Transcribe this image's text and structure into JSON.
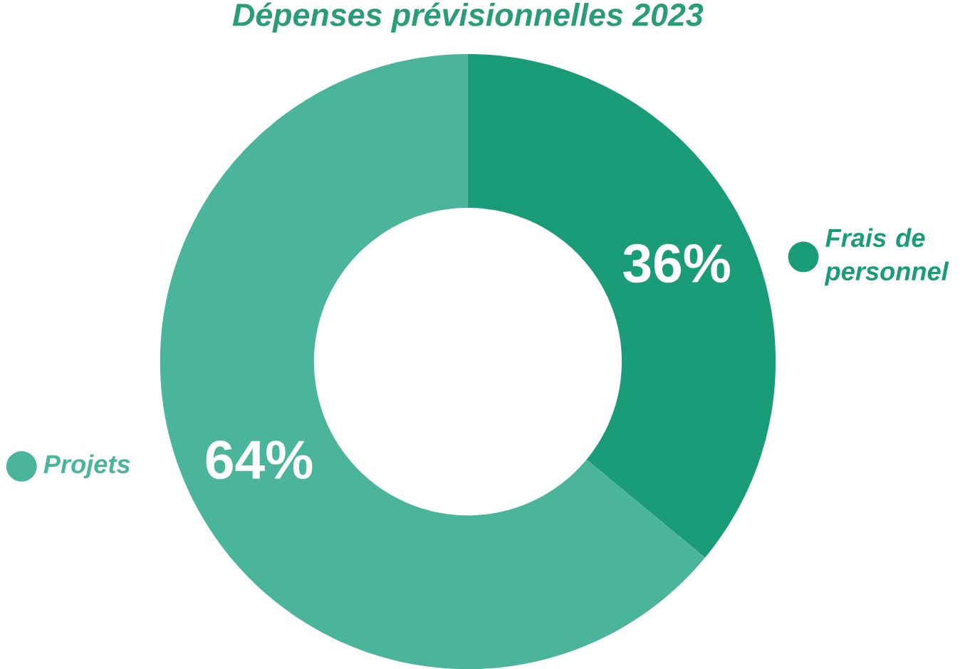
{
  "chart_data": {
    "type": "donut",
    "title": "Dépenses prévisionnelles 2023",
    "categories": [
      "Frais de personnel",
      "Projets"
    ],
    "values": [
      36,
      64
    ],
    "colors": [
      "#1a9c78",
      "#4bb59b"
    ],
    "value_labels": [
      "36%",
      "64%"
    ],
    "legend": "right"
  }
}
